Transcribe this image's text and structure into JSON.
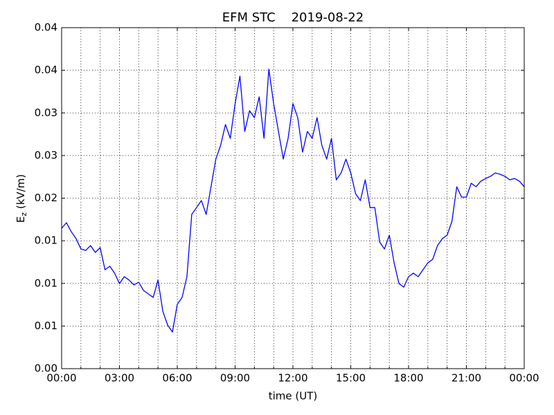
{
  "chart_data": {
    "type": "line",
    "title": "EFM STC    2019-08-22",
    "x_label": "time (UT)",
    "y_label": {
      "symbol": "E",
      "subscript": "z",
      "unit": " (kV/m)"
    },
    "x": [
      0,
      0.25,
      0.5,
      0.75,
      1,
      1.25,
      1.5,
      1.75,
      2,
      2.25,
      2.5,
      2.75,
      3,
      3.25,
      3.5,
      3.75,
      4,
      4.25,
      4.5,
      4.75,
      5,
      5.25,
      5.5,
      5.75,
      6,
      6.25,
      6.5,
      6.75,
      7,
      7.25,
      7.5,
      7.75,
      8,
      8.25,
      8.5,
      8.75,
      9,
      9.25,
      9.5,
      9.75,
      10,
      10.25,
      10.5,
      10.75,
      11,
      11.25,
      11.5,
      11.75,
      12,
      12.25,
      12.5,
      12.75,
      13,
      13.25,
      13.5,
      13.75,
      14,
      14.25,
      14.5,
      14.75,
      15,
      15.25,
      15.5,
      15.75,
      16,
      16.25,
      16.5,
      16.75,
      17,
      17.25,
      17.5,
      17.75,
      18,
      18.25,
      18.5,
      18.75,
      19,
      19.25,
      19.5,
      19.75,
      20,
      20.25,
      20.5,
      20.75,
      21,
      21.25,
      21.5,
      21.75,
      22,
      22.25,
      22.5,
      22.75,
      23,
      23.25,
      23.5,
      23.75,
      24
    ],
    "series": [
      {
        "name": "Ez",
        "color": "#0000ff",
        "values": [
          0.01647,
          0.01712,
          0.01606,
          0.01525,
          0.01404,
          0.01387,
          0.01444,
          0.01363,
          0.0142,
          0.0116,
          0.01201,
          0.0112,
          0.00998,
          0.01079,
          0.01039,
          0.00982,
          0.01014,
          0.00917,
          0.00876,
          0.00836,
          0.01039,
          0.00673,
          0.00511,
          0.0043,
          0.00755,
          0.00836,
          0.01079,
          0.01809,
          0.0189,
          0.01972,
          0.01809,
          0.02134,
          0.02458,
          0.02621,
          0.02864,
          0.02702,
          0.03108,
          0.03432,
          0.02783,
          0.03026,
          0.02945,
          0.03189,
          0.02702,
          0.03513,
          0.03108,
          0.02783,
          0.02458,
          0.02702,
          0.03108,
          0.02945,
          0.0254,
          0.02783,
          0.02702,
          0.02945,
          0.02621,
          0.02458,
          0.02702,
          0.02215,
          0.02296,
          0.02458,
          0.02296,
          0.02053,
          0.01972,
          0.02215,
          0.0189,
          0.0189,
          0.01485,
          0.01404,
          0.01566,
          0.01241,
          0.00998,
          0.00957,
          0.01079,
          0.0112,
          0.01079,
          0.0116,
          0.01241,
          0.01282,
          0.01444,
          0.01525,
          0.01566,
          0.01728,
          0.02134,
          0.02012,
          0.02012,
          0.02175,
          0.02134,
          0.02199,
          0.02231,
          0.02256,
          0.02296,
          0.0228,
          0.02256,
          0.02215,
          0.02231,
          0.02199,
          0.02134
        ]
      }
    ],
    "xlim": [
      0,
      24
    ],
    "xticks": [
      {
        "value": 0,
        "label": "00:00"
      },
      {
        "value": 3,
        "label": "03:00"
      },
      {
        "value": 6,
        "label": "06:00"
      },
      {
        "value": 9,
        "label": "09:00"
      },
      {
        "value": 12,
        "label": "12:00"
      },
      {
        "value": 15,
        "label": "15:00"
      },
      {
        "value": 18,
        "label": "18:00"
      },
      {
        "value": 21,
        "label": "21:00"
      },
      {
        "value": 24,
        "label": "00:00"
      }
    ],
    "x_minor_ticks": [
      1,
      2,
      4,
      5,
      7,
      8,
      10,
      11,
      13,
      14,
      16,
      17,
      19,
      20,
      22,
      23
    ],
    "ylim": [
      0,
      0.04
    ],
    "yticks": [
      {
        "value": 0,
        "label": "0.00"
      },
      {
        "value": 0.005,
        "label": "0.01"
      },
      {
        "value": 0.01,
        "label": "0.01"
      },
      {
        "value": 0.015,
        "label": "0.01"
      },
      {
        "value": 0.02,
        "label": "0.02"
      },
      {
        "value": 0.025,
        "label": "0.03"
      },
      {
        "value": 0.03,
        "label": "0.03"
      },
      {
        "value": 0.035,
        "label": "0.04"
      },
      {
        "value": 0.04,
        "label": "0.04"
      }
    ],
    "grid": true
  }
}
